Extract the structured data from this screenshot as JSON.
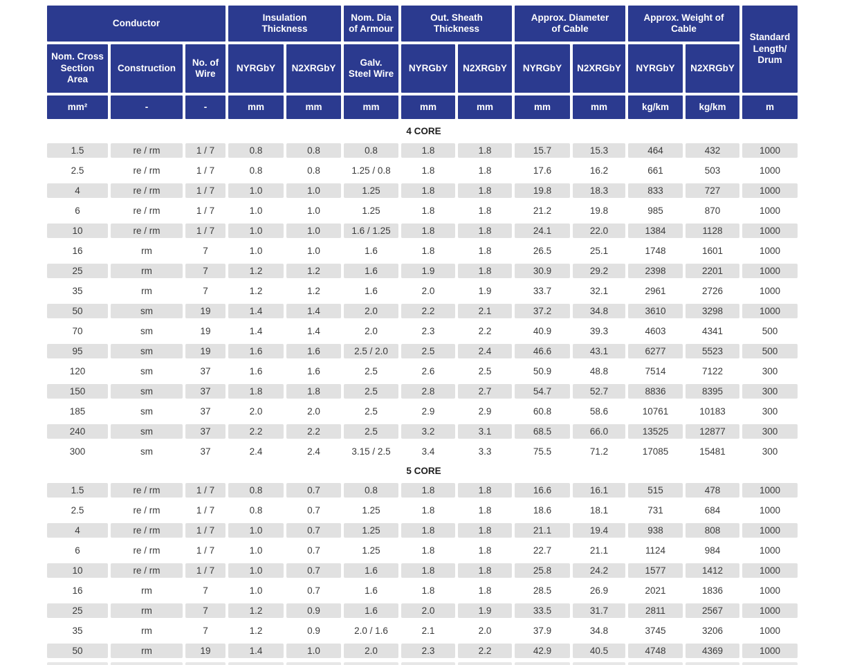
{
  "colors": {
    "header_bg": "#2b3a8f",
    "stripe_bg": "#e1e1e1",
    "data_text": "#3a3a3a",
    "section_title_text": "#1d1d1d"
  },
  "table": {
    "group_headers": [
      {
        "label": "Conductor"
      },
      {
        "label": "Insulation Thickness"
      },
      {
        "label": "Nom. Dia of Armour"
      },
      {
        "label": "Out. Sheath Thickness"
      },
      {
        "label": "Approx. Diameter of Cable"
      },
      {
        "label": "Approx. Weight of Cable"
      },
      {
        "label": "Standard Length/ Drum"
      }
    ],
    "sub_headers": [
      "Nom. Cross Section Area",
      "Construction",
      "No. of Wire",
      "NYRGbY",
      "N2XRGbY",
      "Galv. Steel Wire",
      "NYRGbY",
      "N2XRGbY",
      "NYRGbY",
      "N2XRGbY",
      "NYRGbY",
      "N2XRGbY"
    ],
    "units": [
      "mm²",
      "-",
      "-",
      "mm",
      "mm",
      "mm",
      "mm",
      "mm",
      "mm",
      "mm",
      "kg/km",
      "kg/km",
      "m"
    ],
    "sections": [
      {
        "title": "4 CORE",
        "rows": [
          [
            "1.5",
            "re / rm",
            "1 / 7",
            "0.8",
            "0.8",
            "0.8",
            "1.8",
            "1.8",
            "15.7",
            "15.3",
            "464",
            "432",
            "1000"
          ],
          [
            "2.5",
            "re / rm",
            "1 / 7",
            "0.8",
            "0.8",
            "1.25 / 0.8",
            "1.8",
            "1.8",
            "17.6",
            "16.2",
            "661",
            "503",
            "1000"
          ],
          [
            "4",
            "re / rm",
            "1 / 7",
            "1.0",
            "1.0",
            "1.25",
            "1.8",
            "1.8",
            "19.8",
            "18.3",
            "833",
            "727",
            "1000"
          ],
          [
            "6",
            "re / rm",
            "1 / 7",
            "1.0",
            "1.0",
            "1.25",
            "1.8",
            "1.8",
            "21.2",
            "19.8",
            "985",
            "870",
            "1000"
          ],
          [
            "10",
            "re / rm",
            "1 / 7",
            "1.0",
            "1.0",
            "1.6 / 1.25",
            "1.8",
            "1.8",
            "24.1",
            "22.0",
            "1384",
            "1128",
            "1000"
          ],
          [
            "16",
            "rm",
            "7",
            "1.0",
            "1.0",
            "1.6",
            "1.8",
            "1.8",
            "26.5",
            "25.1",
            "1748",
            "1601",
            "1000"
          ],
          [
            "25",
            "rm",
            "7",
            "1.2",
            "1.2",
            "1.6",
            "1.9",
            "1.8",
            "30.9",
            "29.2",
            "2398",
            "2201",
            "1000"
          ],
          [
            "35",
            "rm",
            "7",
            "1.2",
            "1.2",
            "1.6",
            "2.0",
            "1.9",
            "33.7",
            "32.1",
            "2961",
            "2726",
            "1000"
          ],
          [
            "50",
            "sm",
            "19",
            "1.4",
            "1.4",
            "2.0",
            "2.2",
            "2.1",
            "37.2",
            "34.8",
            "3610",
            "3298",
            "1000"
          ],
          [
            "70",
            "sm",
            "19",
            "1.4",
            "1.4",
            "2.0",
            "2.3",
            "2.2",
            "40.9",
            "39.3",
            "4603",
            "4341",
            "500"
          ],
          [
            "95",
            "sm",
            "19",
            "1.6",
            "1.6",
            "2.5 / 2.0",
            "2.5",
            "2.4",
            "46.6",
            "43.1",
            "6277",
            "5523",
            "500"
          ],
          [
            "120",
            "sm",
            "37",
            "1.6",
            "1.6",
            "2.5",
            "2.6",
            "2.5",
            "50.9",
            "48.8",
            "7514",
            "7122",
            "300"
          ],
          [
            "150",
            "sm",
            "37",
            "1.8",
            "1.8",
            "2.5",
            "2.8",
            "2.7",
            "54.7",
            "52.7",
            "8836",
            "8395",
            "300"
          ],
          [
            "185",
            "sm",
            "37",
            "2.0",
            "2.0",
            "2.5",
            "2.9",
            "2.9",
            "60.8",
            "58.6",
            "10761",
            "10183",
            "300"
          ],
          [
            "240",
            "sm",
            "37",
            "2.2",
            "2.2",
            "2.5",
            "3.2",
            "3.1",
            "68.5",
            "66.0",
            "13525",
            "12877",
            "300"
          ],
          [
            "300",
            "sm",
            "37",
            "2.4",
            "2.4",
            "3.15 / 2.5",
            "3.4",
            "3.3",
            "75.5",
            "71.2",
            "17085",
            "15481",
            "300"
          ]
        ]
      },
      {
        "title": "5 CORE",
        "rows": [
          [
            "1.5",
            "re / rm",
            "1 / 7",
            "0.8",
            "0.7",
            "0.8",
            "1.8",
            "1.8",
            "16.6",
            "16.1",
            "515",
            "478",
            "1000"
          ],
          [
            "2.5",
            "re / rm",
            "1 / 7",
            "0.8",
            "0.7",
            "1.25",
            "1.8",
            "1.8",
            "18.6",
            "18.1",
            "731",
            "684",
            "1000"
          ],
          [
            "4",
            "re / rm",
            "1 / 7",
            "1.0",
            "0.7",
            "1.25",
            "1.8",
            "1.8",
            "21.1",
            "19.4",
            "938",
            "808",
            "1000"
          ],
          [
            "6",
            "re / rm",
            "1 / 7",
            "1.0",
            "0.7",
            "1.25",
            "1.8",
            "1.8",
            "22.7",
            "21.1",
            "1124",
            "984",
            "1000"
          ],
          [
            "10",
            "re / rm",
            "1 / 7",
            "1.0",
            "0.7",
            "1.6",
            "1.8",
            "1.8",
            "25.8",
            "24.2",
            "1577",
            "1412",
            "1000"
          ],
          [
            "16",
            "rm",
            "7",
            "1.0",
            "0.7",
            "1.6",
            "1.8",
            "1.8",
            "28.5",
            "26.9",
            "2021",
            "1836",
            "1000"
          ],
          [
            "25",
            "rm",
            "7",
            "1.2",
            "0.9",
            "1.6",
            "2.0",
            "1.9",
            "33.5",
            "31.7",
            "2811",
            "2567",
            "1000"
          ],
          [
            "35",
            "rm",
            "7",
            "1.2",
            "0.9",
            "2.0 / 1.6",
            "2.1",
            "2.0",
            "37.9",
            "34.8",
            "3745",
            "3206",
            "1000"
          ],
          [
            "50",
            "rm",
            "19",
            "1.4",
            "1.0",
            "2.0",
            "2.3",
            "2.2",
            "42.9",
            "40.5",
            "4748",
            "4369",
            "1000"
          ]
        ]
      }
    ]
  }
}
